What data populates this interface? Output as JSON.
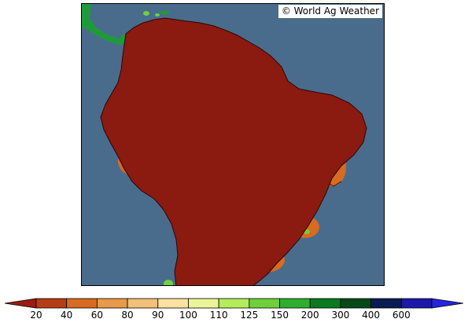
{
  "credit": "© World Ag Weather",
  "map": {
    "colors": {
      "ocean": "#4a6c8c",
      "outside_land": "#1f9a3b",
      "base": "#8b1a10",
      "border": "#2a0804"
    }
  },
  "legend": {
    "bins": [
      {
        "color": "#9e1b0c"
      },
      {
        "color": "#b53c14"
      },
      {
        "color": "#d86a22"
      },
      {
        "color": "#e69a4a"
      },
      {
        "color": "#f3c07a"
      },
      {
        "color": "#fbe2a0"
      },
      {
        "color": "#eaf59a"
      },
      {
        "color": "#b4ec5a"
      },
      {
        "color": "#6ed13a"
      },
      {
        "color": "#2eae2e"
      },
      {
        "color": "#0a7a1e"
      },
      {
        "color": "#05491a"
      },
      {
        "color": "#0a1a52"
      },
      {
        "color": "#1c18a8"
      },
      {
        "color": "#2424e0"
      }
    ],
    "tick_labels": [
      "20",
      "40",
      "60",
      "80",
      "90",
      "100",
      "110",
      "125",
      "150",
      "200",
      "300",
      "400",
      "600"
    ]
  }
}
